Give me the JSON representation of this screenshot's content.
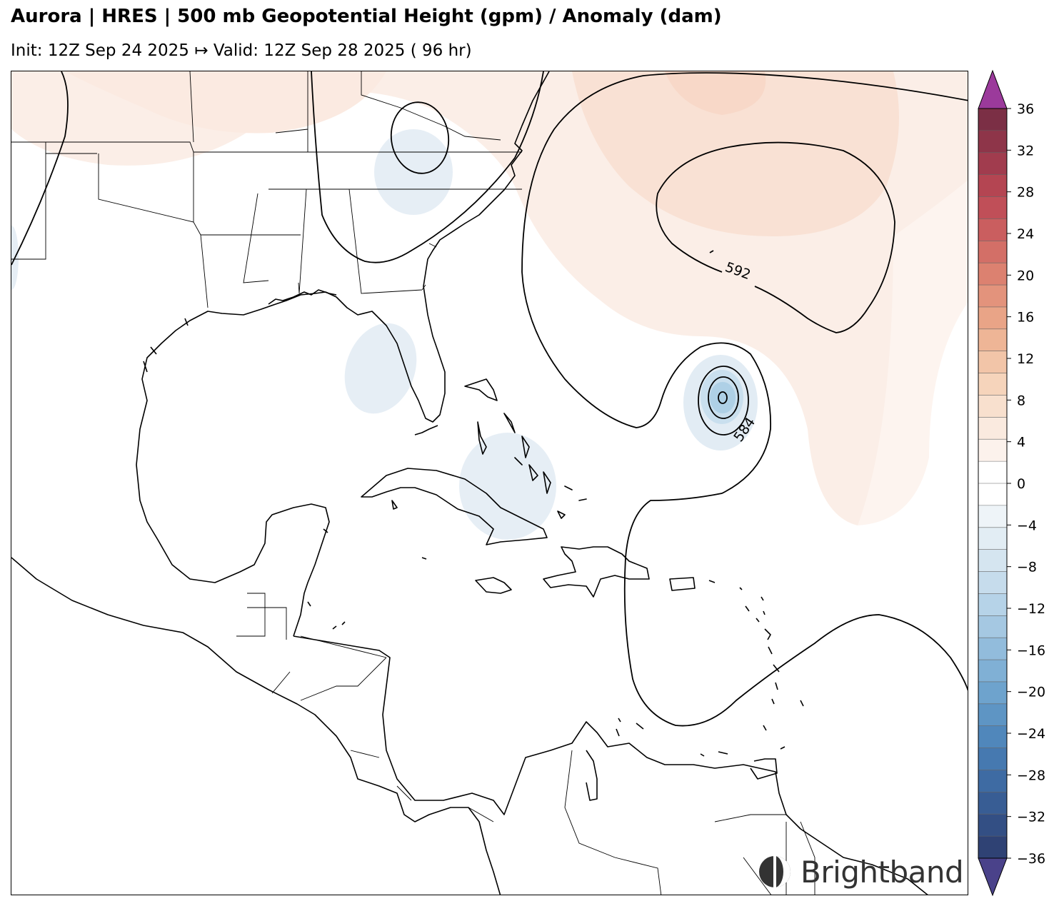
{
  "header": {
    "title": "Aurora | HRES | 500 mb Geopotential Height (gpm) / Anomaly (dam)",
    "subtitle": "Init: 12Z Sep 24 2025 ↦ Valid: 12Z Sep 28 2025 ( 96 hr)"
  },
  "map": {
    "contour_labels": [
      "592",
      "584",
      "0"
    ]
  },
  "colorbar": {
    "ticks": [
      "36",
      "32",
      "28",
      "24",
      "20",
      "16",
      "12",
      "8",
      "4",
      "0",
      "−4",
      "−8",
      "−12",
      "−16",
      "−20",
      "−24",
      "−28",
      "−32",
      "−36"
    ],
    "levels": [
      36,
      32,
      28,
      24,
      20,
      16,
      12,
      8,
      4,
      0,
      -4,
      -8,
      -12,
      -16,
      -20,
      -24,
      -28,
      -32,
      -36
    ],
    "colors_top_to_bottom": [
      "#7b2f45",
      "#8e3549",
      "#a13c4e",
      "#b44552",
      "#c04f58",
      "#ca5e5f",
      "#d36f67",
      "#dc8170",
      "#e3937c",
      "#e9a487",
      "#eeb596",
      "#f2c5a8",
      "#f6d4bb",
      "#f8e0ce",
      "#faeadf",
      "#fcf2ec",
      "#ffffff",
      "#ffffff",
      "#eef4f8",
      "#e2edf4",
      "#d5e5f0",
      "#c6dcec",
      "#b6d3e8",
      "#a5c8e2",
      "#92bcdc",
      "#80b0d5",
      "#6ea3cd",
      "#5e95c4",
      "#5087bb",
      "#4679b0",
      "#3e6ba3",
      "#385d94",
      "#334f84",
      "#2f4274"
    ],
    "extend_top_color": "#9b3a9b",
    "extend_bottom_color": "#4a428a"
  },
  "branding": {
    "logo_text": "Brightband"
  }
}
